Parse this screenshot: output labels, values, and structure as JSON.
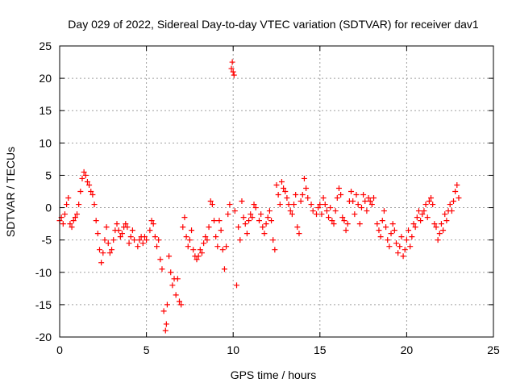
{
  "chart_data": {
    "type": "scatter",
    "title": "Day 029 of 2022, Sidereal Day-to-day VTEC variation (SDTVAR) for receiver dav1",
    "xlabel": "GPS time / hours",
    "ylabel": "SDTVAR / TECUs",
    "xlim": [
      0,
      25
    ],
    "ylim": [
      -20,
      25
    ],
    "xticks": [
      0,
      5,
      10,
      15,
      20,
      25
    ],
    "xtick_labels": [
      "0",
      "5",
      "10",
      "15",
      "20",
      "25"
    ],
    "yticks": [
      -20,
      -15,
      -10,
      -5,
      0,
      5,
      10,
      15,
      20,
      25
    ],
    "ytick_labels": [
      "-20",
      "-15",
      "-10",
      "-5",
      "0",
      "5",
      "10",
      "15",
      "20",
      "25"
    ],
    "grid": true,
    "marker": "+",
    "color": "#ff0000",
    "series": [
      {
        "name": "dav1",
        "points": [
          [
            0.0,
            -2.0
          ],
          [
            0.1,
            -1.5
          ],
          [
            0.2,
            -2.5
          ],
          [
            0.3,
            -1.0
          ],
          [
            0.4,
            0.5
          ],
          [
            0.5,
            1.5
          ],
          [
            0.6,
            -2.5
          ],
          [
            0.7,
            -3.0
          ],
          [
            0.8,
            -2.0
          ],
          [
            0.9,
            -1.5
          ],
          [
            1.0,
            -1.0
          ],
          [
            1.1,
            0.5
          ],
          [
            1.2,
            2.5
          ],
          [
            1.3,
            4.5
          ],
          [
            1.4,
            5.5
          ],
          [
            1.5,
            5.0
          ],
          [
            1.6,
            4.0
          ],
          [
            1.7,
            3.5
          ],
          [
            1.8,
            2.5
          ],
          [
            1.9,
            2.0
          ],
          [
            2.0,
            0.5
          ],
          [
            2.1,
            -2.0
          ],
          [
            2.2,
            -4.0
          ],
          [
            2.3,
            -6.5
          ],
          [
            2.4,
            -8.5
          ],
          [
            2.5,
            -7.0
          ],
          [
            2.6,
            -5.0
          ],
          [
            2.7,
            -3.0
          ],
          [
            2.8,
            -5.5
          ],
          [
            2.9,
            -7.0
          ],
          [
            3.0,
            -6.5
          ],
          [
            3.1,
            -5.0
          ],
          [
            3.2,
            -3.5
          ],
          [
            3.3,
            -2.5
          ],
          [
            3.4,
            -3.5
          ],
          [
            3.5,
            -4.5
          ],
          [
            3.6,
            -4.0
          ],
          [
            3.7,
            -3.0
          ],
          [
            3.8,
            -2.5
          ],
          [
            3.9,
            -3.0
          ],
          [
            4.0,
            -5.5
          ],
          [
            4.1,
            -4.5
          ],
          [
            4.2,
            -3.5
          ],
          [
            4.3,
            -5.0
          ],
          [
            4.5,
            -6.0
          ],
          [
            4.6,
            -5.0
          ],
          [
            4.7,
            -4.5
          ],
          [
            4.8,
            -5.5
          ],
          [
            4.9,
            -4.5
          ],
          [
            5.0,
            -5.0
          ],
          [
            5.2,
            -3.5
          ],
          [
            5.3,
            -2.0
          ],
          [
            5.4,
            -2.5
          ],
          [
            5.5,
            -4.5
          ],
          [
            5.6,
            -6.0
          ],
          [
            5.7,
            -5.0
          ],
          [
            5.8,
            -8.0
          ],
          [
            5.9,
            -9.5
          ],
          [
            6.0,
            -16.0
          ],
          [
            6.1,
            -19.0
          ],
          [
            6.15,
            -18.0
          ],
          [
            6.2,
            -15.0
          ],
          [
            6.3,
            -7.5
          ],
          [
            6.4,
            -10.0
          ],
          [
            6.5,
            -12.0
          ],
          [
            6.6,
            -11.0
          ],
          [
            6.7,
            -13.5
          ],
          [
            6.8,
            -11.0
          ],
          [
            6.9,
            -14.5
          ],
          [
            7.0,
            -15.0
          ],
          [
            7.1,
            -3.0
          ],
          [
            7.2,
            -1.5
          ],
          [
            7.3,
            -4.5
          ],
          [
            7.4,
            -6.0
          ],
          [
            7.5,
            -5.0
          ],
          [
            7.6,
            -3.5
          ],
          [
            7.7,
            -6.5
          ],
          [
            7.8,
            -7.5
          ],
          [
            7.9,
            -8.0
          ],
          [
            8.0,
            -7.5
          ],
          [
            8.1,
            -6.5
          ],
          [
            8.2,
            -7.0
          ],
          [
            8.3,
            -5.5
          ],
          [
            8.4,
            -4.5
          ],
          [
            8.5,
            -5.0
          ],
          [
            8.6,
            -3.0
          ],
          [
            8.7,
            1.0
          ],
          [
            8.8,
            0.5
          ],
          [
            8.9,
            -2.0
          ],
          [
            9.0,
            -4.5
          ],
          [
            9.1,
            -6.0
          ],
          [
            9.2,
            -2.0
          ],
          [
            9.3,
            -3.5
          ],
          [
            9.4,
            -6.5
          ],
          [
            9.5,
            -9.5
          ],
          [
            9.6,
            -6.0
          ],
          [
            9.7,
            -1.0
          ],
          [
            9.8,
            0.5
          ],
          [
            9.9,
            21.5
          ],
          [
            9.95,
            22.5
          ],
          [
            10.0,
            21.0
          ],
          [
            10.05,
            20.5
          ],
          [
            10.1,
            -0.5
          ],
          [
            10.2,
            -12.0
          ],
          [
            10.3,
            -3.0
          ],
          [
            10.4,
            -5.0
          ],
          [
            10.5,
            1.0
          ],
          [
            10.6,
            -1.5
          ],
          [
            10.7,
            -2.5
          ],
          [
            10.8,
            -4.0
          ],
          [
            10.9,
            -2.0
          ],
          [
            11.0,
            -1.0
          ],
          [
            11.1,
            -1.5
          ],
          [
            11.2,
            0.5
          ],
          [
            11.3,
            0.0
          ],
          [
            11.5,
            -2.0
          ],
          [
            11.6,
            -1.0
          ],
          [
            11.7,
            -3.0
          ],
          [
            11.8,
            -4.0
          ],
          [
            11.9,
            -2.5
          ],
          [
            12.0,
            -1.5
          ],
          [
            12.1,
            -0.5
          ],
          [
            12.2,
            -2.0
          ],
          [
            12.3,
            -5.0
          ],
          [
            12.4,
            -6.5
          ],
          [
            12.5,
            3.5
          ],
          [
            12.6,
            2.0
          ],
          [
            12.7,
            0.5
          ],
          [
            12.8,
            4.0
          ],
          [
            12.9,
            3.0
          ],
          [
            13.0,
            2.5
          ],
          [
            13.1,
            1.5
          ],
          [
            13.2,
            0.5
          ],
          [
            13.3,
            -0.5
          ],
          [
            13.4,
            -1.0
          ],
          [
            13.5,
            0.5
          ],
          [
            13.6,
            2.0
          ],
          [
            13.7,
            -3.0
          ],
          [
            13.8,
            -4.0
          ],
          [
            13.9,
            1.0
          ],
          [
            14.0,
            2.0
          ],
          [
            14.1,
            4.5
          ],
          [
            14.2,
            3.0
          ],
          [
            14.3,
            1.5
          ],
          [
            14.5,
            0.5
          ],
          [
            14.6,
            -0.5
          ],
          [
            14.8,
            -1.0
          ],
          [
            14.9,
            0.0
          ],
          [
            15.0,
            0.5
          ],
          [
            15.1,
            -1.0
          ],
          [
            15.2,
            1.5
          ],
          [
            15.3,
            0.5
          ],
          [
            15.4,
            -0.5
          ],
          [
            15.5,
            -1.5
          ],
          [
            15.6,
            0.0
          ],
          [
            15.7,
            -2.0
          ],
          [
            15.8,
            -2.5
          ],
          [
            15.9,
            -0.5
          ],
          [
            16.0,
            1.5
          ],
          [
            16.1,
            3.0
          ],
          [
            16.2,
            2.0
          ],
          [
            16.3,
            -1.5
          ],
          [
            16.4,
            -2.0
          ],
          [
            16.5,
            -3.5
          ],
          [
            16.6,
            -2.5
          ],
          [
            16.7,
            1.0
          ],
          [
            16.8,
            2.5
          ],
          [
            16.9,
            1.0
          ],
          [
            17.0,
            -1.0
          ],
          [
            17.1,
            2.0
          ],
          [
            17.2,
            0.5
          ],
          [
            17.3,
            -2.5
          ],
          [
            17.4,
            0.0
          ],
          [
            17.5,
            2.0
          ],
          [
            17.6,
            1.0
          ],
          [
            17.7,
            -0.5
          ],
          [
            17.8,
            1.5
          ],
          [
            17.9,
            1.0
          ],
          [
            18.0,
            0.5
          ],
          [
            18.1,
            1.5
          ],
          [
            18.3,
            -2.5
          ],
          [
            18.4,
            -3.5
          ],
          [
            18.5,
            -4.5
          ],
          [
            18.6,
            -2.0
          ],
          [
            18.7,
            -0.5
          ],
          [
            18.8,
            -3.0
          ],
          [
            18.9,
            -5.0
          ],
          [
            19.0,
            -6.0
          ],
          [
            19.1,
            -4.0
          ],
          [
            19.2,
            -2.5
          ],
          [
            19.3,
            -3.5
          ],
          [
            19.4,
            -5.5
          ],
          [
            19.5,
            -7.0
          ],
          [
            19.6,
            -6.0
          ],
          [
            19.7,
            -4.5
          ],
          [
            19.8,
            -7.5
          ],
          [
            19.9,
            -6.5
          ],
          [
            20.0,
            -5.0
          ],
          [
            20.1,
            -3.5
          ],
          [
            20.2,
            -6.0
          ],
          [
            20.3,
            -4.5
          ],
          [
            20.4,
            -2.5
          ],
          [
            20.5,
            -3.0
          ],
          [
            20.6,
            -1.5
          ],
          [
            20.7,
            -0.5
          ],
          [
            20.8,
            -2.0
          ],
          [
            20.9,
            -1.0
          ],
          [
            21.0,
            -0.5
          ],
          [
            21.1,
            0.5
          ],
          [
            21.2,
            -1.5
          ],
          [
            21.3,
            1.0
          ],
          [
            21.4,
            1.5
          ],
          [
            21.5,
            0.5
          ],
          [
            21.6,
            -2.5
          ],
          [
            21.7,
            -3.0
          ],
          [
            21.8,
            -5.0
          ],
          [
            21.9,
            -4.0
          ],
          [
            22.0,
            -2.5
          ],
          [
            22.1,
            -3.5
          ],
          [
            22.2,
            -1.0
          ],
          [
            22.3,
            -2.0
          ],
          [
            22.4,
            -0.5
          ],
          [
            22.5,
            0.5
          ],
          [
            22.6,
            -0.5
          ],
          [
            22.7,
            1.0
          ],
          [
            22.8,
            2.5
          ],
          [
            22.9,
            3.5
          ],
          [
            23.0,
            1.5
          ]
        ]
      }
    ]
  }
}
